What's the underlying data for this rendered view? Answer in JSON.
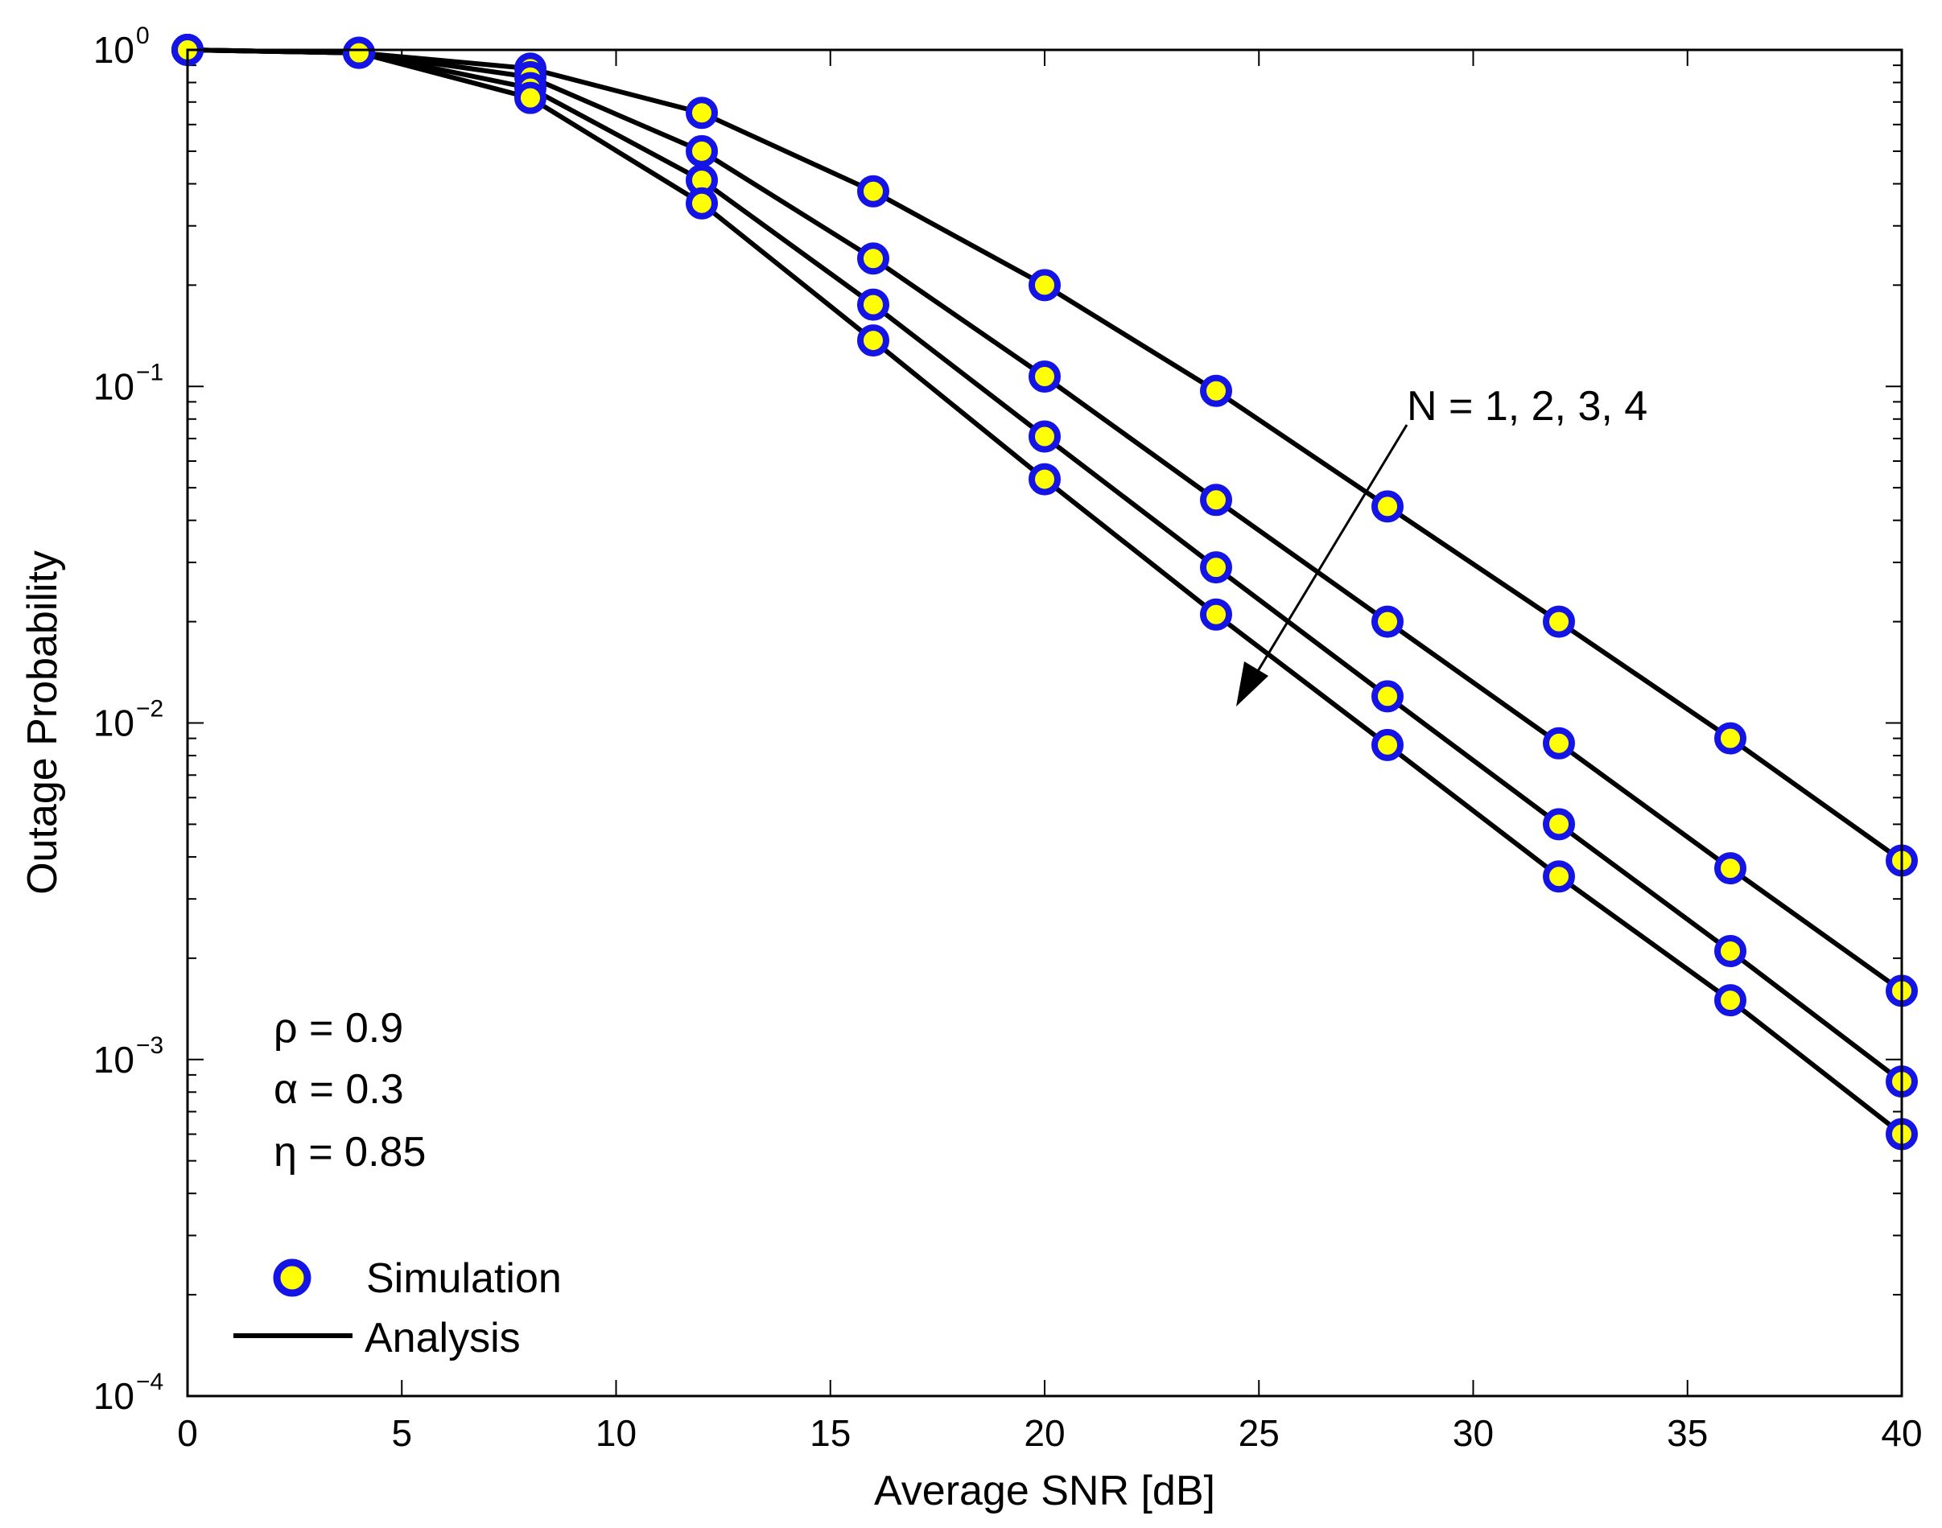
{
  "chart_data": {
    "type": "line",
    "title": "",
    "xlabel": "Average SNR [dB]",
    "ylabel": "Outage Probability",
    "xlim": [
      0,
      40
    ],
    "ylim": [
      0.0001,
      1
    ],
    "yscale": "log",
    "xticks": [
      0,
      5,
      10,
      15,
      20,
      25,
      30,
      35,
      40
    ],
    "xtick_labels": [
      "0",
      "5",
      "10",
      "15",
      "20",
      "25",
      "30",
      "35",
      "40"
    ],
    "yticks": [
      1,
      0.1,
      0.01,
      0.001,
      0.0001
    ],
    "ytick_labels": [
      {
        "base": "10",
        "exp": "0"
      },
      {
        "base": "10",
        "exp": "−1"
      },
      {
        "base": "10",
        "exp": "−2"
      },
      {
        "base": "10",
        "exp": "−3"
      },
      {
        "base": "10",
        "exp": "−4"
      }
    ],
    "grid": false,
    "x": [
      0,
      4,
      8,
      12,
      16,
      20,
      24,
      28,
      32,
      36,
      40
    ],
    "series": [
      {
        "name": "N = 1",
        "values": [
          1.0,
          0.98,
          0.88,
          0.65,
          0.38,
          0.2,
          0.097,
          0.044,
          0.02,
          0.009,
          0.0039
        ]
      },
      {
        "name": "N = 2",
        "values": [
          1.0,
          0.98,
          0.83,
          0.5,
          0.24,
          0.107,
          0.046,
          0.02,
          0.0087,
          0.0037,
          0.0016
        ]
      },
      {
        "name": "N = 3",
        "values": [
          1.0,
          0.98,
          0.77,
          0.41,
          0.175,
          0.071,
          0.029,
          0.012,
          0.005,
          0.0021,
          0.00086
        ]
      },
      {
        "name": "N = 4",
        "values": [
          1.0,
          0.98,
          0.72,
          0.35,
          0.137,
          0.053,
          0.021,
          0.0086,
          0.0035,
          0.0015,
          0.0006
        ]
      }
    ],
    "legend": {
      "placement": "bottom-left",
      "entries": [
        {
          "label": "Simulation",
          "style": "marker"
        },
        {
          "label": "Analysis",
          "style": "line"
        }
      ]
    },
    "annotations": {
      "arrow_label": "N = 1, 2, 3, 4",
      "params": [
        "ρ = 0.9",
        "α = 0.3",
        "η = 0.85"
      ]
    },
    "colors": {
      "line": "#000000",
      "marker_fill": "#ffff00",
      "marker_edge": "#1414e6",
      "axes": "#000000"
    }
  }
}
